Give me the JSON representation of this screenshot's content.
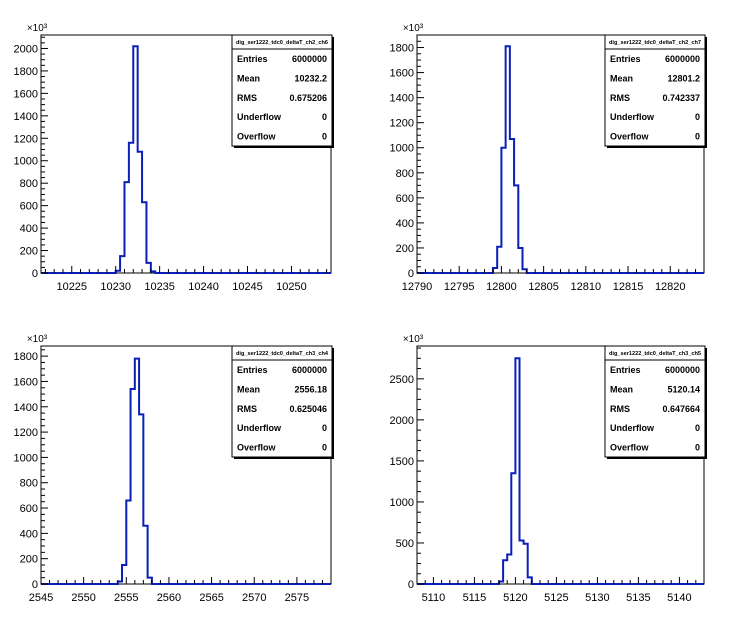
{
  "chart_data": [
    {
      "type": "bar",
      "title": "",
      "xlim": [
        10221.5,
        10254.5
      ],
      "ylim": [
        0,
        2120
      ],
      "y_multiplier_label": "×10³",
      "xticks": [
        10225,
        10230,
        10235,
        10240,
        10245,
        10250
      ],
      "yticks": [
        0,
        200,
        400,
        600,
        800,
        1000,
        1200,
        1400,
        1600,
        1800,
        2000
      ],
      "bin_width": 0.5,
      "x": [
        10229.5,
        10230.0,
        10230.5,
        10231.0,
        10231.5,
        10232.0,
        10232.5,
        10233.0,
        10233.5,
        10234.0,
        10234.5
      ],
      "values": [
        0,
        20,
        150,
        810,
        1160,
        2020,
        1080,
        630,
        90,
        15,
        0
      ],
      "stats": {
        "name": "dig_ser1222_tdc0_deltaT_ch2_ch6",
        "rows": [
          {
            "label": "Entries",
            "value": "6000000"
          },
          {
            "label": "Mean",
            "value": "10232.2"
          },
          {
            "label": "RMS",
            "value": "0.675206"
          },
          {
            "label": "Underflow",
            "value": "0"
          },
          {
            "label": "Overflow",
            "value": "0"
          }
        ]
      }
    },
    {
      "type": "bar",
      "title": "",
      "xlim": [
        12790,
        12824
      ],
      "ylim": [
        0,
        1900
      ],
      "y_multiplier_label": "×10³",
      "xticks": [
        12790,
        12795,
        12800,
        12805,
        12810,
        12815,
        12820
      ],
      "yticks": [
        0,
        200,
        400,
        600,
        800,
        1000,
        1200,
        1400,
        1600,
        1800
      ],
      "bin_width": 0.5,
      "x": [
        12798.5,
        12799.0,
        12799.5,
        12800.0,
        12800.5,
        12801.0,
        12801.5,
        12802.0,
        12802.5,
        12803.0
      ],
      "values": [
        0,
        40,
        210,
        1000,
        1810,
        1070,
        700,
        200,
        30,
        0
      ],
      "stats": {
        "name": "dig_ser1222_tdc0_deltaT_ch2_ch7",
        "rows": [
          {
            "label": "Entries",
            "value": "6000000"
          },
          {
            "label": "Mean",
            "value": "12801.2"
          },
          {
            "label": "RMS",
            "value": "0.742337"
          },
          {
            "label": "Underflow",
            "value": "0"
          },
          {
            "label": "Overflow",
            "value": "0"
          }
        ]
      }
    },
    {
      "type": "bar",
      "title": "",
      "xlim": [
        2545,
        2579
      ],
      "ylim": [
        0,
        1880
      ],
      "y_multiplier_label": "×10³",
      "xticks": [
        2545,
        2550,
        2555,
        2560,
        2565,
        2570,
        2575
      ],
      "yticks": [
        0,
        200,
        400,
        600,
        800,
        1000,
        1200,
        1400,
        1600,
        1800
      ],
      "bin_width": 0.5,
      "x": [
        2553.5,
        2554.0,
        2554.5,
        2555.0,
        2555.5,
        2556.0,
        2556.5,
        2557.0,
        2557.5,
        2558.0
      ],
      "values": [
        0,
        20,
        150,
        660,
        1540,
        1780,
        1340,
        460,
        50,
        0
      ],
      "stats": {
        "name": "dig_ser1222_tdc0_deltaT_ch3_ch4",
        "rows": [
          {
            "label": "Entries",
            "value": "6000000"
          },
          {
            "label": "Mean",
            "value": "2556.18"
          },
          {
            "label": "RMS",
            "value": "0.625046"
          },
          {
            "label": "Underflow",
            "value": "0"
          },
          {
            "label": "Overflow",
            "value": "0"
          }
        ]
      }
    },
    {
      "type": "bar",
      "title": "",
      "xlim": [
        5108,
        5143
      ],
      "ylim": [
        0,
        2900
      ],
      "y_multiplier_label": "×10³",
      "xticks": [
        5110,
        5115,
        5120,
        5125,
        5130,
        5135,
        5140
      ],
      "yticks": [
        0,
        500,
        1000,
        1500,
        2000,
        2500
      ],
      "bin_width": 0.5,
      "x": [
        5117.5,
        5118.0,
        5118.5,
        5119.0,
        5119.5,
        5120.0,
        5120.5,
        5121.0,
        5121.5,
        5122.0
      ],
      "values": [
        0,
        30,
        290,
        360,
        1350,
        2750,
        530,
        490,
        80,
        0
      ],
      "stats": {
        "name": "dig_ser1222_tdc0_deltaT_ch3_ch5",
        "rows": [
          {
            "label": "Entries",
            "value": "6000000"
          },
          {
            "label": "Mean",
            "value": "5120.14"
          },
          {
            "label": "RMS",
            "value": "0.647664"
          },
          {
            "label": "Underflow",
            "value": "0"
          },
          {
            "label": "Overflow",
            "value": "0"
          }
        ]
      }
    }
  ],
  "colors": {
    "histogram_line": "#0a1fb8",
    "axis": "#000000",
    "stats_box_bg": "#ffffff"
  }
}
